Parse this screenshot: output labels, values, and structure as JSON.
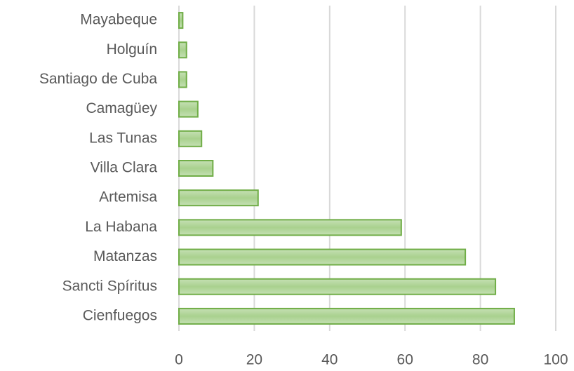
{
  "chart_data": {
    "type": "bar",
    "orientation": "horizontal",
    "categories": [
      "Mayabeque",
      "Holguín",
      "Santiago de Cuba",
      "Camagüey",
      "Las Tunas",
      "Villa Clara",
      "Artemisa",
      "La Habana",
      "Matanzas",
      "Sancti Spíritus",
      "Cienfuegos"
    ],
    "values": [
      1,
      2,
      2,
      5,
      6,
      9,
      21,
      59,
      76,
      84,
      89
    ],
    "color": "#a9d18e",
    "edge_color": "#70ad47",
    "xlim": [
      0,
      100
    ],
    "xticks": [
      0,
      20,
      40,
      60,
      80,
      100
    ],
    "grid": true
  }
}
